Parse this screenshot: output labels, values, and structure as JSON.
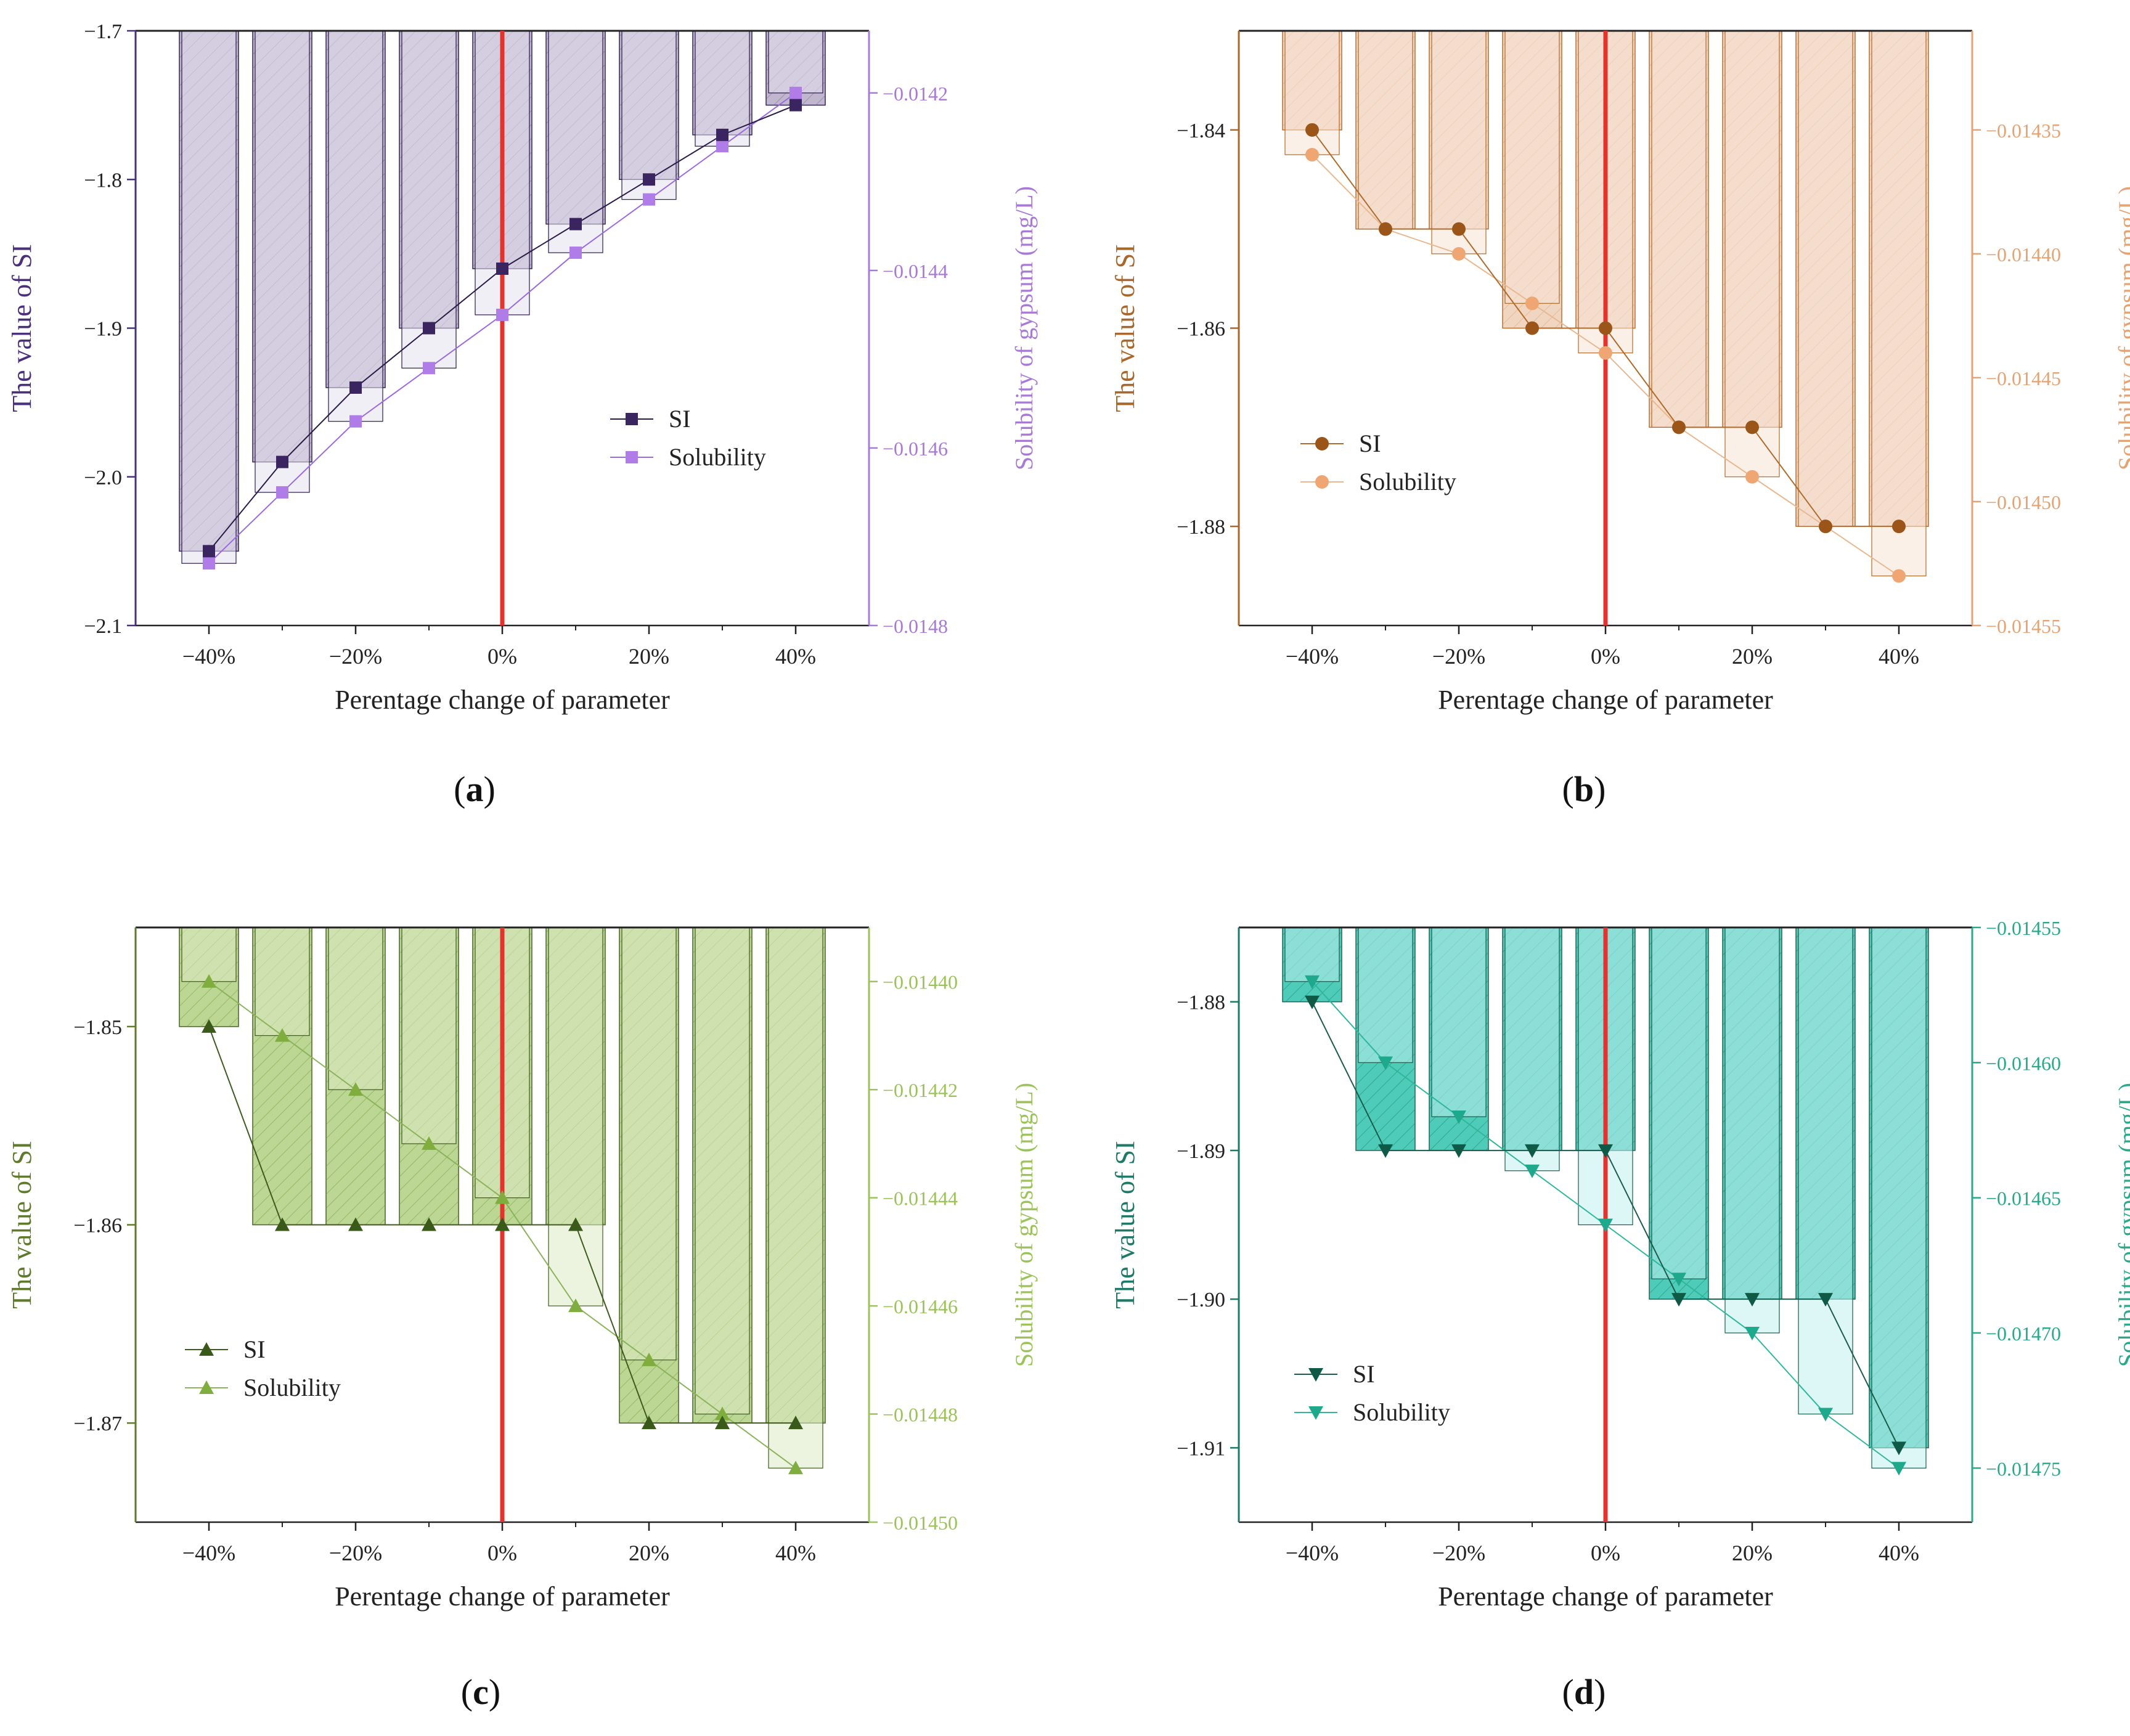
{
  "chart_data": [
    {
      "panel_label": "a",
      "type": "bar",
      "title": "",
      "categories": [
        "-40%",
        "-30%",
        "-20%",
        "-10%",
        "0%",
        "10%",
        "20%",
        "30%",
        "40%"
      ],
      "xlabel": "Perentage change of parameter",
      "x_tick_labels": [
        "−40%",
        "−20%",
        "0%",
        "20%",
        "40%"
      ],
      "xlim": [
        -50,
        50
      ],
      "ylabel": "The value of SI",
      "ylim": [
        -2.1,
        -1.7
      ],
      "y_tick_labels": [
        "−1.7",
        "−1.8",
        "−1.9",
        "−2.0",
        "−2.1"
      ],
      "y2label": "Solubility of gypsum (mg/L)",
      "y2lim": [
        -0.0148,
        -0.01413
      ],
      "y2_ticks": [
        -0.0142,
        -0.0144,
        -0.0146,
        -0.0148
      ],
      "y2_tick_labels": [
        "−0.0142",
        "−0.0144",
        "−0.0146",
        "−0.0148"
      ],
      "marker": "square",
      "legend_position": "center-right",
      "colors": {
        "axis": "#4a2f7a",
        "axis2": "#a77ad6",
        "si_line": "#2a1a4a",
        "si_marker": "#3a2560",
        "sol_line": "#9a6ae0",
        "sol_marker": "#b07de8",
        "si_bar": "#bdb4cc",
        "sol_bar": "#e6e2ee"
      },
      "series": [
        {
          "name": "SI",
          "axis": "left",
          "values": [
            -2.05,
            -1.99,
            -1.94,
            -1.9,
            -1.86,
            -1.83,
            -1.8,
            -1.77,
            -1.75
          ]
        },
        {
          "name": "Solubility",
          "axis": "right",
          "values": [
            -0.01473,
            -0.01465,
            -0.01457,
            -0.01451,
            -0.01445,
            -0.01438,
            -0.01432,
            -0.01426,
            -0.0142
          ]
        }
      ]
    },
    {
      "panel_label": "b",
      "type": "bar",
      "title": "",
      "categories": [
        "-40%",
        "-30%",
        "-20%",
        "-10%",
        "0%",
        "10%",
        "20%",
        "30%",
        "40%"
      ],
      "xlabel": "Perentage change of parameter",
      "x_tick_labels": [
        "−40%",
        "−20%",
        "0%",
        "20%",
        "40%"
      ],
      "xlim": [
        -50,
        50
      ],
      "ylabel": "The value of SI",
      "ylim": [
        -1.89,
        -1.83
      ],
      "y_ticks": [
        -1.84,
        -1.86,
        -1.88
      ],
      "y_tick_labels": [
        "−1.84",
        "−1.86",
        "−1.88"
      ],
      "y2label": "Solubility of gypsum (mg/L)",
      "y2lim": [
        -0.01455,
        -0.01431
      ],
      "y2_ticks": [
        -0.01435,
        -0.0144,
        -0.01445,
        -0.0145,
        -0.01455
      ],
      "y2_tick_labels": [
        "−0.01435",
        "−0.01440",
        "−0.01445",
        "−0.01450",
        "−0.01455"
      ],
      "marker": "circle",
      "legend_position": "center-left",
      "colors": {
        "axis": "#a8672b",
        "axis2": "#e3a374",
        "si_line": "#b06a2a",
        "si_marker": "#9c5518",
        "sol_line": "#e8b890",
        "sol_marker": "#efa672",
        "si_bar": "#f0d3bd",
        "sol_bar": "#f8e4d6"
      },
      "series": [
        {
          "name": "SI",
          "axis": "left",
          "values": [
            -1.84,
            -1.85,
            -1.85,
            -1.86,
            -1.86,
            -1.87,
            -1.87,
            -1.88,
            -1.88
          ]
        },
        {
          "name": "Solubility",
          "axis": "right",
          "values": [
            -0.01436,
            -0.01439,
            -0.0144,
            -0.01442,
            -0.01444,
            -0.01447,
            -0.01449,
            -0.01451,
            -0.01453
          ]
        }
      ]
    },
    {
      "panel_label": "c",
      "type": "bar",
      "title": "",
      "categories": [
        "-40%",
        "-30%",
        "-20%",
        "-10%",
        "0%",
        "10%",
        "20%",
        "30%",
        "40%"
      ],
      "xlabel": "Perentage change of parameter",
      "x_tick_labels": [
        "−40%",
        "−20%",
        "0%",
        "20%",
        "40%"
      ],
      "xlim": [
        -50,
        50
      ],
      "ylabel": "The value of SI",
      "ylim": [
        -1.875,
        -1.845
      ],
      "y_ticks": [
        -1.85,
        -1.86,
        -1.87
      ],
      "y_tick_labels": [
        "−1.85",
        "−1.86",
        "−1.87"
      ],
      "y2label": "Solubility of gypsum (mg/L)",
      "y2lim": [
        -0.0145,
        -0.01439
      ],
      "y2_ticks": [
        -0.0144,
        -0.01442,
        -0.01444,
        -0.01446,
        -0.01448,
        -0.0145
      ],
      "y2_tick_labels": [
        "−0.01440",
        "−0.01442",
        "−0.01444",
        "−0.01446",
        "−0.01448",
        "−0.01450"
      ],
      "marker": "triangle-up",
      "legend_position": "bottom-left",
      "colors": {
        "axis": "#5e7a2a",
        "axis2": "#9cc35a",
        "si_line": "#3f5a1e",
        "si_marker": "#3a5a1a",
        "sol_line": "#8ab35a",
        "sol_marker": "#7fae3e",
        "si_bar": "#b9d48e",
        "sol_bar": "#dcebc4"
      },
      "series": [
        {
          "name": "SI",
          "axis": "left",
          "values": [
            -1.85,
            -1.86,
            -1.86,
            -1.86,
            -1.86,
            -1.86,
            -1.87,
            -1.87,
            -1.87
          ]
        },
        {
          "name": "Solubility",
          "axis": "right",
          "values": [
            -0.0144,
            -0.01441,
            -0.01442,
            -0.01443,
            -0.01444,
            -0.01446,
            -0.01447,
            -0.01448,
            -0.01449
          ]
        }
      ]
    },
    {
      "panel_label": "d",
      "type": "bar",
      "title": "",
      "categories": [
        "-40%",
        "-30%",
        "-20%",
        "-10%",
        "0%",
        "10%",
        "20%",
        "30%",
        "40%"
      ],
      "xlabel": "Perentage change of parameter",
      "x_tick_labels": [
        "−40%",
        "−20%",
        "0%",
        "20%",
        "40%"
      ],
      "xlim": [
        -50,
        50
      ],
      "ylabel": "The value of SI",
      "ylim": [
        -1.915,
        -1.875
      ],
      "y_ticks": [
        -1.88,
        -1.89,
        -1.9,
        -1.91
      ],
      "y_tick_labels": [
        "−1.88",
        "−1.89",
        "−1.90",
        "−1.91"
      ],
      "y2label": "Solubility of gypsum (mg/L)",
      "y2lim": [
        -0.01477,
        -0.01455
      ],
      "y2_ticks": [
        -0.01455,
        -0.0146,
        -0.01465,
        -0.0147,
        -0.01475
      ],
      "y2_tick_labels": [
        "−0.01455",
        "−0.01460",
        "−0.01465",
        "−0.01470",
        "−0.01475"
      ],
      "marker": "triangle-down",
      "legend_position": "bottom-left",
      "colors": {
        "axis": "#1e7a66",
        "axis2": "#2aa88a",
        "si_line": "#1a5c4c",
        "si_marker": "#0f5a47",
        "sol_line": "#2fb79a",
        "sol_marker": "#1fa98c",
        "si_bar": "#45c9b6",
        "sol_bar": "#bff0ee"
      },
      "series": [
        {
          "name": "SI",
          "axis": "left",
          "values": [
            -1.88,
            -1.89,
            -1.89,
            -1.89,
            -1.89,
            -1.9,
            -1.9,
            -1.9,
            -1.91
          ]
        },
        {
          "name": "Solubility",
          "axis": "right",
          "values": [
            -0.01457,
            -0.0146,
            -0.01462,
            -0.01464,
            -0.01466,
            -0.01468,
            -0.0147,
            -0.01473,
            -0.01475
          ]
        }
      ]
    }
  ]
}
